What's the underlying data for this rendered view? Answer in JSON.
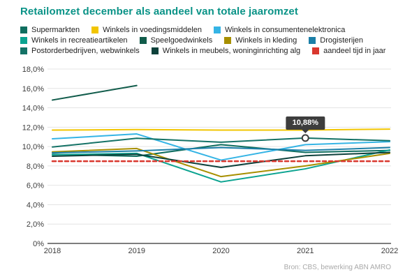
{
  "title": "Retailomzet december als aandeel van totale jaaromzet",
  "title_color": "#0a9387",
  "source": "Bron: CBS, bewerking ABN AMRO",
  "tooltip": {
    "label": "10,88%",
    "year": "2021",
    "value": 10.88,
    "series": "Postorderbedrijven, webwinkels"
  },
  "legend_rows": [
    [
      0,
      1,
      2
    ],
    [
      3,
      4,
      5,
      6
    ],
    [
      7,
      8,
      9
    ]
  ],
  "chart_data": {
    "type": "line",
    "title": "Retailomzet december als aandeel van totale jaaromzet",
    "categories": [
      "2018",
      "2019",
      "2020",
      "2021",
      "2022"
    ],
    "series": [
      {
        "name": "Supermarkten",
        "color": "#0f6e5f",
        "dashed": false,
        "values": [
          9.2,
          9.0,
          10.2,
          9.4,
          9.6
        ]
      },
      {
        "name": "Winkels in voedingsmiddelen",
        "color": "#f2c500",
        "dashed": false,
        "values": [
          11.7,
          11.75,
          11.7,
          11.7,
          11.8
        ]
      },
      {
        "name": "Winkels in consumentenelektronica",
        "color": "#35b4e5",
        "dashed": false,
        "values": [
          10.8,
          11.3,
          8.6,
          10.2,
          10.5
        ]
      },
      {
        "name": "Winkels in recreatieartikelen",
        "color": "#0ba390",
        "dashed": false,
        "values": [
          9.15,
          9.3,
          6.35,
          7.7,
          9.65
        ]
      },
      {
        "name": "Speelgoedwinkels",
        "color": "#115c4b",
        "dashed": false,
        "values": [
          14.8,
          16.3,
          null,
          null,
          null
        ]
      },
      {
        "name": "Winkels in kleding",
        "color": "#a78f00",
        "dashed": false,
        "values": [
          9.45,
          9.8,
          6.9,
          8.0,
          9.3
        ]
      },
      {
        "name": "Drogisterijen",
        "color": "#1b7fa7",
        "dashed": false,
        "values": [
          9.35,
          9.55,
          9.9,
          9.6,
          9.9
        ]
      },
      {
        "name": "Postorderbedrijven, webwinkels",
        "color": "#147266",
        "dashed": false,
        "values": [
          9.95,
          10.85,
          10.45,
          10.88,
          10.6
        ]
      },
      {
        "name": "Winkels in meubels, woninginrichting alg",
        "color": "#0d413b",
        "dashed": false,
        "values": [
          9.0,
          9.2,
          7.85,
          9.05,
          9.4
        ]
      },
      {
        "name": "aandeel tijd in jaar",
        "color": "#d9372e",
        "dashed": true,
        "values": [
          8.49,
          8.49,
          8.49,
          8.49,
          8.49
        ]
      }
    ],
    "xlabel": "",
    "ylabel": "",
    "ylim": [
      0,
      18
    ],
    "ytick_step": 2,
    "yticks": [
      "0%",
      "2,0%",
      "4,0%",
      "6,0%",
      "8,0%",
      "10,0%",
      "12,0%",
      "14,0%",
      "16,0%",
      "18,0%"
    ],
    "grid": true,
    "legend_position": "top",
    "grid_color": "#e4e4e4",
    "axis_color": "#7d7d7d",
    "tick_text_color": "#3c3c3c"
  }
}
